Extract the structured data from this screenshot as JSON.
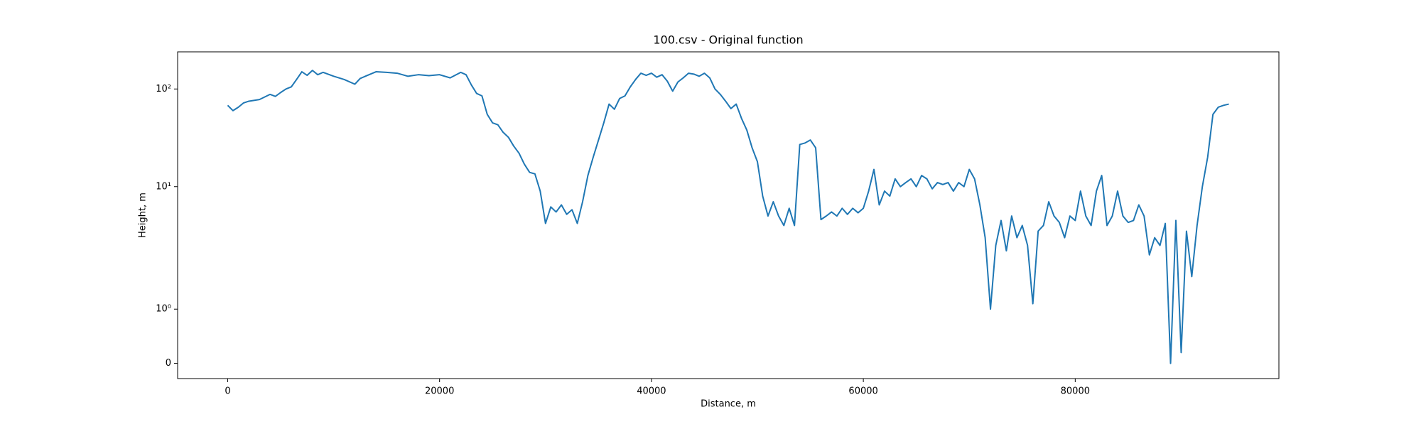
{
  "chart_data": {
    "type": "line",
    "title": "100.csv - Original function",
    "x_label": "Distance, m",
    "y_label": "Height, m",
    "color": "#1f77b4",
    "yscale": "symlog",
    "linthresh": 2,
    "xlim": [
      -4725,
      99225
    ],
    "ylim": [
      -0.28,
      240
    ],
    "xticks": [
      0,
      20000,
      40000,
      60000,
      80000
    ],
    "yticks": [
      0,
      {
        "value": 1,
        "label": "10⁰"
      },
      {
        "value": 10,
        "label": "10¹"
      },
      {
        "value": 100,
        "label": "10²"
      }
    ],
    "x": [
      0,
      500,
      1000,
      1500,
      2000,
      3000,
      4000,
      4500,
      5000,
      5500,
      6000,
      6500,
      7000,
      7500,
      8000,
      8500,
      9000,
      10000,
      11000,
      12000,
      12500,
      13000,
      14000,
      15000,
      16000,
      17000,
      18000,
      19000,
      20000,
      21000,
      22000,
      22500,
      23000,
      23500,
      24000,
      24500,
      25000,
      25500,
      26000,
      26500,
      27000,
      27500,
      28000,
      28500,
      29000,
      29500,
      30000,
      30500,
      31000,
      31500,
      32000,
      32500,
      33000,
      33500,
      34000,
      34500,
      35000,
      35500,
      36000,
      36500,
      37000,
      37500,
      38000,
      38500,
      39000,
      39500,
      40000,
      40500,
      41000,
      41500,
      42000,
      42500,
      43000,
      43500,
      44000,
      44500,
      45000,
      45500,
      46000,
      46500,
      47000,
      47500,
      48000,
      48500,
      49000,
      49500,
      50000,
      50500,
      51000,
      51500,
      52000,
      52500,
      53000,
      53500,
      54000,
      54500,
      55000,
      55500,
      56000,
      56500,
      57000,
      57500,
      58000,
      58500,
      59000,
      59500,
      60000,
      60500,
      61000,
      61500,
      62000,
      62500,
      63000,
      63500,
      64000,
      64500,
      65000,
      65500,
      66000,
      66500,
      67000,
      67500,
      68000,
      68500,
      69000,
      69500,
      70000,
      70500,
      71000,
      71500,
      72000,
      72500,
      73000,
      73500,
      74000,
      74500,
      75000,
      75500,
      76000,
      76500,
      77000,
      77500,
      78000,
      78500,
      79000,
      79500,
      80000,
      80500,
      81000,
      81500,
      82000,
      82500,
      83000,
      83500,
      84000,
      84500,
      85000,
      85500,
      86000,
      86500,
      87000,
      87500,
      88000,
      88500,
      89000,
      89500,
      90000,
      90500,
      91000,
      91500,
      92000,
      92500,
      93000,
      93500,
      94000,
      94500
    ],
    "values": [
      68,
      60,
      65,
      72,
      75,
      78,
      88,
      84,
      92,
      100,
      105,
      125,
      150,
      138,
      155,
      140,
      148,
      135,
      125,
      112,
      128,
      135,
      150,
      148,
      145,
      135,
      140,
      137,
      140,
      130,
      148,
      140,
      110,
      90,
      85,
      55,
      45,
      43,
      36,
      32,
      26,
      22,
      17,
      14,
      13.5,
      9,
      4.2,
      6.2,
      5.5,
      6.5,
      5.2,
      5.8,
      4.2,
      7,
      13,
      20,
      30,
      45,
      70,
      62,
      80,
      85,
      105,
      125,
      145,
      138,
      145,
      132,
      140,
      120,
      95,
      118,
      130,
      145,
      142,
      135,
      145,
      130,
      100,
      88,
      75,
      63,
      70,
      50,
      38,
      25,
      18,
      8,
      5,
      7,
      5,
      4,
      6,
      4,
      27,
      28,
      30,
      25,
      4.6,
      5,
      5.5,
      5,
      6,
      5.2,
      6,
      5.4,
      6,
      9,
      15,
      6.5,
      9,
      8,
      12,
      10,
      11,
      12,
      10,
      13,
      12,
      9.5,
      11,
      10.5,
      11,
      9,
      11,
      10,
      15,
      12,
      6.5,
      3,
      1,
      2.5,
      4.5,
      2.2,
      5,
      3,
      4,
      2.5,
      1.1,
      3.5,
      4,
      7,
      5,
      4.3,
      3,
      5,
      4.5,
      9,
      5,
      4,
      9,
      13,
      4,
      5,
      9,
      5,
      4.3,
      4.5,
      6.5,
      5,
      2,
      3,
      2.5,
      4.2,
      0,
      4.5,
      0.2,
      3.5,
      1.6,
      4,
      10,
      20,
      55,
      65,
      68,
      70
    ]
  }
}
